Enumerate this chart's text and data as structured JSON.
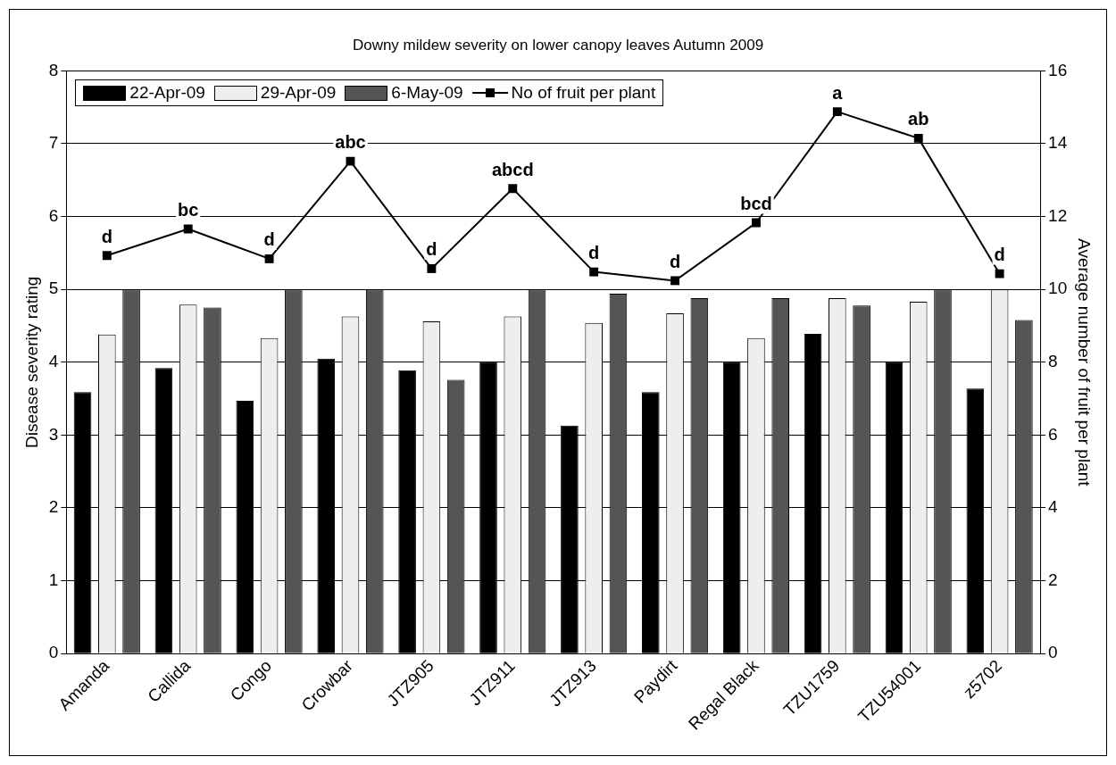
{
  "chart_data": {
    "type": "bar",
    "title": "Downy mildew severity on lower canopy leaves Autumn 2009",
    "ylabel": "Disease severity rating",
    "y2label": "Average number of fruit per plant",
    "categories": [
      "Amanda",
      "Callida",
      "Congo",
      "Crowbar",
      "JTZ905",
      "JTZ911",
      "JTZ913",
      "Paydirt",
      "Regal Black",
      "TZU1759",
      "TZU54001",
      "z5702"
    ],
    "series": [
      {
        "name": "22-Apr-09",
        "color": "#000000",
        "values": [
          3.59,
          3.92,
          3.47,
          4.05,
          3.89,
          4.0,
          3.13,
          3.59,
          4.0,
          4.39,
          4.0,
          3.64
        ]
      },
      {
        "name": "29-Apr-09",
        "color": "#eeeeee",
        "values": [
          4.38,
          4.79,
          4.33,
          4.63,
          4.56,
          4.63,
          4.54,
          4.67,
          4.33,
          4.88,
          4.83,
          5.0
        ]
      },
      {
        "name": "6-May-09",
        "color": "#555555",
        "values": [
          5.0,
          4.75,
          5.0,
          5.0,
          3.76,
          5.0,
          4.94,
          4.88,
          4.88,
          4.78,
          5.0,
          4.58
        ]
      },
      {
        "name": "No of fruit per plant",
        "type": "line",
        "axis": "y2",
        "color": "#000000",
        "marker": "square",
        "values": [
          10.93,
          11.66,
          10.84,
          13.52,
          10.57,
          12.77,
          10.48,
          10.24,
          11.83,
          14.88,
          14.15,
          10.43
        ],
        "value_labels": [
          "d",
          "bc",
          "d",
          "abc",
          "d",
          "abcd",
          "d",
          "d",
          "bcd",
          "a",
          "ab",
          "d"
        ]
      }
    ],
    "ylim": [
      0,
      8
    ],
    "yticks": [
      0,
      1,
      2,
      3,
      4,
      5,
      6,
      7,
      8
    ],
    "y2lim": [
      0,
      16
    ],
    "y2ticks": [
      0,
      2,
      4,
      6,
      8,
      10,
      12,
      14,
      16
    ],
    "grid": "y",
    "legend": "top left"
  }
}
